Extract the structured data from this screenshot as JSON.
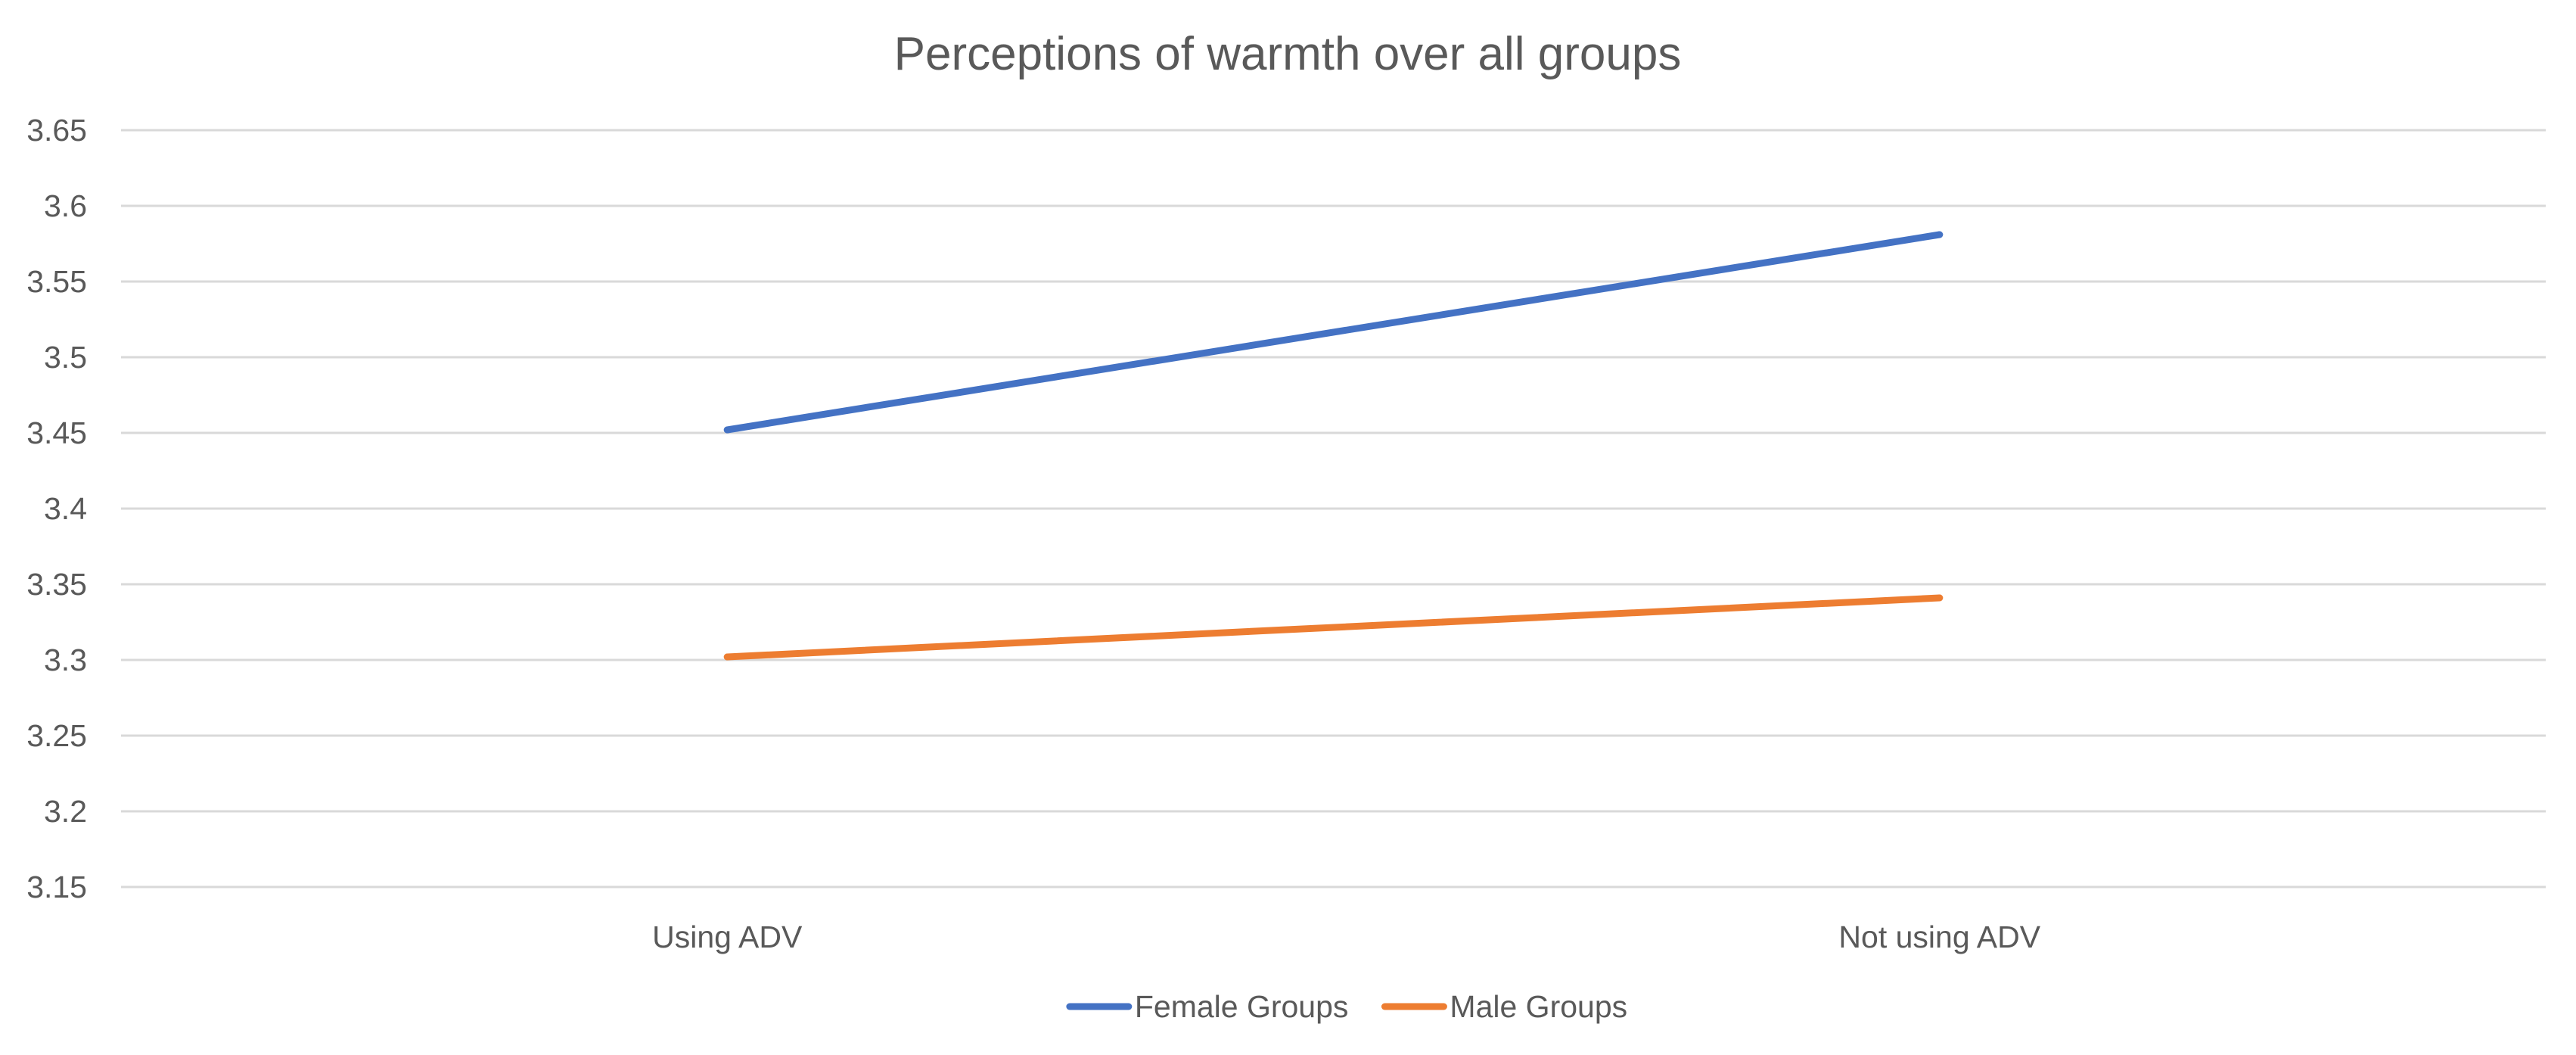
{
  "chart_data": {
    "type": "line",
    "title": "Perceptions of warmth over all groups",
    "xlabel": "",
    "ylabel": "",
    "categories": [
      "Using ADV",
      "Not using ADV"
    ],
    "series": [
      {
        "name": "Female Groups",
        "color": "#4472c4",
        "values": [
          3.452,
          3.581
        ]
      },
      {
        "name": "Male Groups",
        "color": "#ed7d31",
        "values": [
          3.302,
          3.341
        ]
      }
    ],
    "ylim": [
      3.15,
      3.65
    ],
    "yticks": [
      3.15,
      3.2,
      3.25,
      3.3,
      3.35,
      3.4,
      3.45,
      3.5,
      3.55,
      3.6,
      3.65
    ],
    "ytick_labels": [
      "3.15",
      "3.2",
      "3.25",
      "3.3",
      "3.35",
      "3.4",
      "3.45",
      "3.5",
      "3.55",
      "3.6",
      "3.65"
    ],
    "grid": true,
    "legend_position": "bottom-center",
    "gridline_color": "#d9d9d9",
    "text_color": "#595959"
  }
}
